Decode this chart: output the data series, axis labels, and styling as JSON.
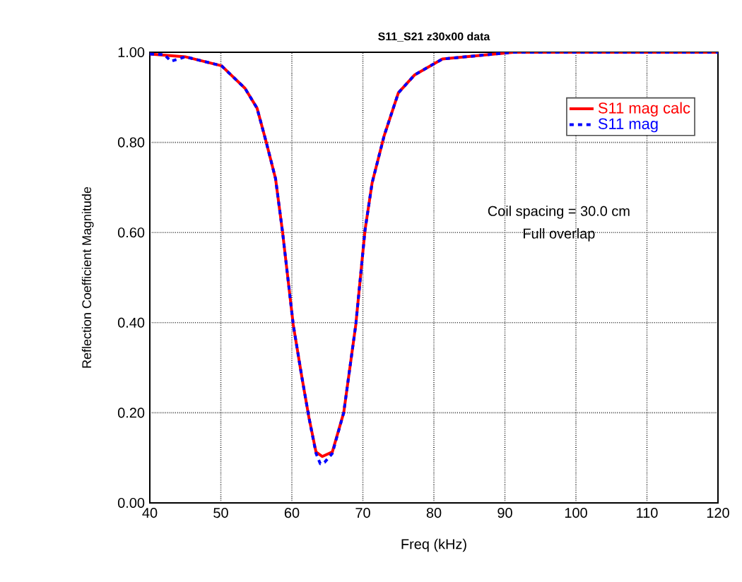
{
  "chart_data": {
    "type": "line",
    "title": "S11_S21 z30x00 data",
    "xlabel": "Freq (kHz)",
    "ylabel": "Reflection Coefficient Magnitude",
    "annotations": [
      "Coil spacing = 30.0 cm",
      "Full overlap"
    ],
    "xlim": [
      40,
      120
    ],
    "xticks": [
      40,
      50,
      60,
      70,
      80,
      90,
      100,
      110,
      120
    ],
    "ylim": [
      0,
      1
    ],
    "yticks": [
      {
        "value": 0,
        "label": "0.00"
      },
      {
        "value": 0.2,
        "label": "0.20"
      },
      {
        "value": 0.4,
        "label": "0.40"
      },
      {
        "value": 0.6,
        "label": "0.60"
      },
      {
        "value": 0.8,
        "label": "0.80"
      },
      {
        "value": 1,
        "label": "1.00"
      }
    ],
    "grid": true,
    "legend": "top right",
    "marker": "none",
    "series": [
      {
        "name": "S11 mag calc",
        "color": "#ff0000",
        "line_style": "solid",
        "x": [
          40,
          45,
          50.1,
          53.4,
          55.1,
          56.4,
          57.7,
          58.7,
          60.2,
          61.4,
          62.4,
          63.4,
          64.3,
          65.7,
          67.3,
          69,
          70.3,
          71.3,
          73,
          75,
          77.3,
          81.2,
          91.2,
          100,
          110,
          120
        ],
        "values": [
          0.996,
          0.99,
          0.97,
          0.92,
          0.876,
          0.8,
          0.72,
          0.6,
          0.395,
          0.28,
          0.19,
          0.113,
          0.103,
          0.113,
          0.2,
          0.395,
          0.605,
          0.71,
          0.815,
          0.91,
          0.95,
          0.985,
          1,
          1,
          1,
          1
        ]
      },
      {
        "name": "S11 mag",
        "color": "#0000ff",
        "line_style": "dashed",
        "x": [
          40,
          42,
          43,
          45,
          50.1,
          53.4,
          55.1,
          56.4,
          57.7,
          58.7,
          60.2,
          61.4,
          62.4,
          63.4,
          64,
          64.6,
          65.7,
          67.3,
          69,
          70.3,
          71.3,
          73,
          75,
          77.3,
          81.2,
          91.2,
          100,
          110,
          120
        ],
        "values": [
          0.996,
          0.995,
          0.98,
          0.99,
          0.97,
          0.92,
          0.876,
          0.8,
          0.72,
          0.6,
          0.395,
          0.28,
          0.19,
          0.11,
          0.087,
          0.09,
          0.11,
          0.2,
          0.395,
          0.605,
          0.71,
          0.815,
          0.91,
          0.95,
          0.985,
          1,
          1,
          1,
          1
        ]
      }
    ]
  }
}
